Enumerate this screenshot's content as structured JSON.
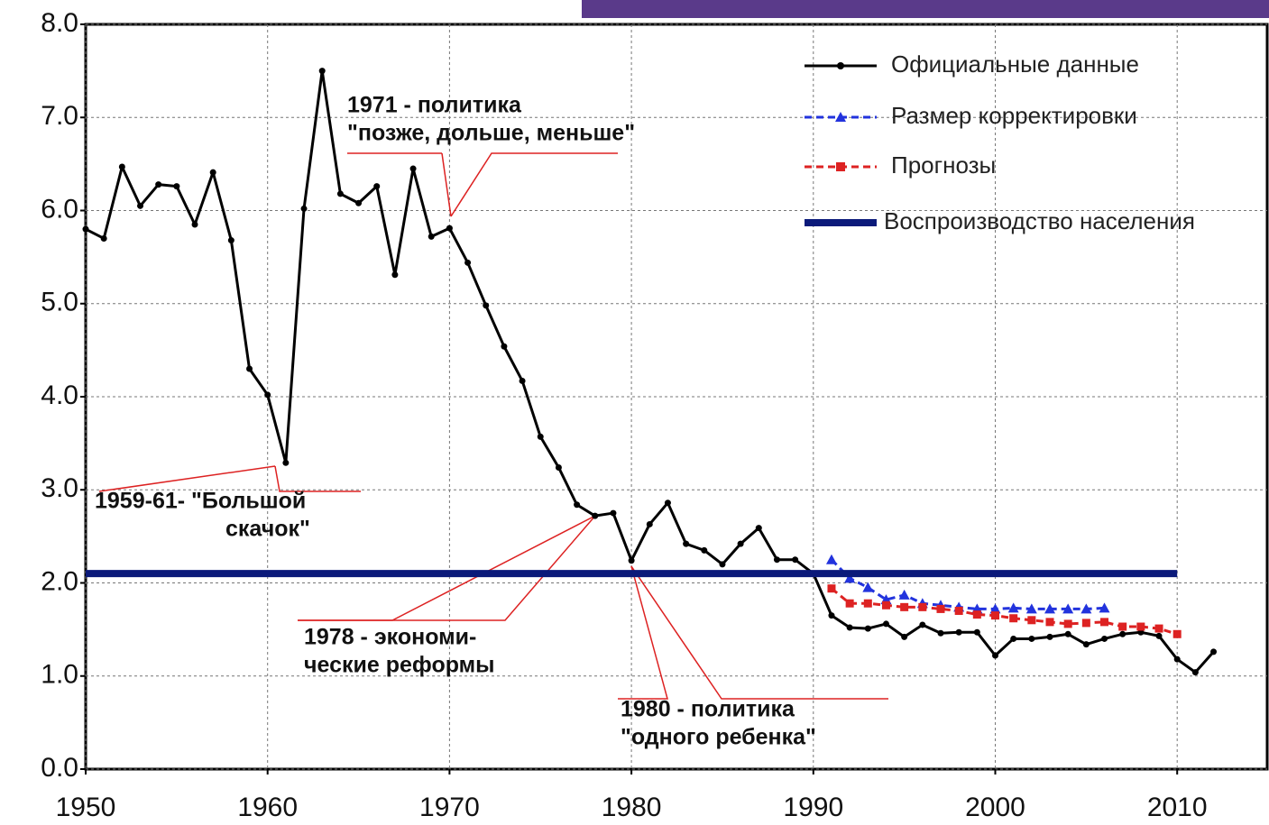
{
  "chart_data": {
    "type": "line",
    "xlim": [
      1950,
      2015
    ],
    "ylim": [
      0,
      8
    ],
    "xticks": [
      1950,
      1960,
      1970,
      1980,
      1990,
      2000,
      2010
    ],
    "yticks": [
      {
        "value": 0,
        "label": "0.0"
      },
      {
        "value": 1,
        "label": "1.0"
      },
      {
        "value": 2,
        "label": "2.0"
      },
      {
        "value": 3,
        "label": "3.0"
      },
      {
        "value": 4,
        "label": "4.0"
      },
      {
        "value": 5,
        "label": "5.0"
      },
      {
        "value": 6,
        "label": "6.0"
      },
      {
        "value": 7,
        "label": "7.0"
      },
      {
        "value": 8,
        "label": "8.0"
      }
    ],
    "grid": true,
    "legend": "upper right",
    "series": [
      {
        "name": "Официальные данные",
        "color": "#000000",
        "style": "solid-dot",
        "x": [
          1950,
          1951,
          1952,
          1953,
          1954,
          1955,
          1956,
          1957,
          1958,
          1959,
          1960,
          1961,
          1962,
          1963,
          1964,
          1965,
          1966,
          1967,
          1968,
          1969,
          1970,
          1971,
          1972,
          1973,
          1974,
          1975,
          1976,
          1977,
          1978,
          1979,
          1980,
          1981,
          1982,
          1983,
          1984,
          1985,
          1986,
          1987,
          1988,
          1989,
          1990,
          1991,
          1992,
          1993,
          1994,
          1995,
          1996,
          1997,
          1998,
          1999,
          2000,
          2001,
          2002,
          2003,
          2004,
          2005,
          2006,
          2007,
          2008,
          2009,
          2010,
          2011,
          2012
        ],
        "values": [
          5.8,
          5.7,
          6.47,
          6.05,
          6.28,
          6.26,
          5.85,
          6.41,
          5.68,
          4.3,
          4.02,
          3.29,
          6.02,
          7.5,
          6.18,
          6.08,
          6.26,
          5.31,
          6.45,
          5.72,
          5.81,
          5.44,
          4.98,
          4.54,
          4.17,
          3.57,
          3.24,
          2.84,
          2.72,
          2.75,
          2.24,
          2.63,
          2.86,
          2.42,
          2.35,
          2.2,
          2.42,
          2.59,
          2.25,
          2.25,
          2.1,
          1.65,
          1.52,
          1.51,
          1.56,
          1.42,
          1.55,
          1.46,
          1.47,
          1.47,
          1.22,
          1.4,
          1.4,
          1.42,
          1.45,
          1.34,
          1.4,
          1.45,
          1.47,
          1.43,
          1.18,
          1.04,
          1.26
        ]
      },
      {
        "name": "Размер корректировки",
        "color": "#2233dd",
        "style": "dashed-triangle",
        "x": [
          1991,
          1992,
          1993,
          1994,
          1995,
          1996,
          1997,
          1998,
          1999,
          2000,
          2001,
          2002,
          2003,
          2004,
          2005,
          2006
        ],
        "values": [
          2.25,
          2.05,
          1.95,
          1.82,
          1.87,
          1.78,
          1.76,
          1.74,
          1.72,
          1.72,
          1.73,
          1.72,
          1.72,
          1.72,
          1.72,
          1.73
        ]
      },
      {
        "name": "Прогнозы",
        "color": "#dd2222",
        "style": "dashed-square",
        "x": [
          1991,
          1992,
          1993,
          1994,
          1995,
          1996,
          1997,
          1998,
          1999,
          2000,
          2001,
          2002,
          2003,
          2004,
          2005,
          2006,
          2007,
          2008,
          2009,
          2010
        ],
        "values": [
          1.94,
          1.78,
          1.78,
          1.76,
          1.74,
          1.74,
          1.72,
          1.7,
          1.66,
          1.65,
          1.62,
          1.6,
          1.58,
          1.56,
          1.57,
          1.58,
          1.53,
          1.53,
          1.51,
          1.45
        ]
      },
      {
        "name": "Воспроизводство населения",
        "color": "#0b1a7a",
        "style": "thick",
        "x": [
          1950,
          2010
        ],
        "values": [
          2.1,
          2.1
        ]
      }
    ],
    "annotations": [
      {
        "lines": [
          "1971 - политика",
          "\"позже, дольше, меньше\""
        ]
      },
      {
        "lines": [
          "1959-61- \"Большой",
          "скачок\""
        ]
      },
      {
        "lines": [
          "1978 - экономи-",
          "ческие реформы"
        ]
      },
      {
        "lines": [
          "1980 - политика",
          "\"одного ребенка\""
        ]
      }
    ]
  }
}
